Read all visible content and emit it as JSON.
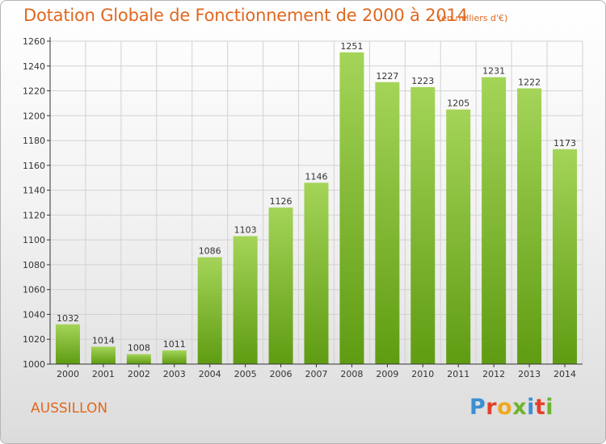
{
  "header": {
    "title": "Dotation Globale de Fonctionnement de 2000 à 2014",
    "subtitle": "(en milliers d'€)"
  },
  "footer": {
    "commune": "AUSSILLON",
    "logo": {
      "letters": [
        "P",
        "r",
        "o",
        "x",
        "i",
        "t",
        "i"
      ],
      "colors": [
        "#3a8fd4",
        "#e2402c",
        "#f0a81e",
        "#6cb52c",
        "#3a8fd4",
        "#e2402c",
        "#6cb52c"
      ]
    }
  },
  "colors": {
    "bar_top": "#a4d458",
    "bar_bottom": "#5f9c12",
    "grid": "#d2d2d2",
    "axis": "#333333",
    "accent": "#e06820"
  },
  "chart_data": {
    "type": "bar",
    "title": "Dotation Globale de Fonctionnement de 2000 à 2014",
    "subtitle": "(en milliers d'€)",
    "xlabel": "",
    "ylabel": "",
    "categories": [
      "2000",
      "2001",
      "2002",
      "2003",
      "2004",
      "2005",
      "2006",
      "2007",
      "2008",
      "2009",
      "2010",
      "2011",
      "2012",
      "2013",
      "2014"
    ],
    "values": [
      1032,
      1014,
      1008,
      1011,
      1086,
      1103,
      1126,
      1146,
      1251,
      1227,
      1223,
      1205,
      1231,
      1222,
      1173
    ],
    "data_labels": [
      "1032",
      "1014",
      "1008",
      "1011",
      "1086",
      "1103",
      "1126",
      "1146",
      "1251",
      "1227",
      "1223",
      "1205",
      "1231",
      "1222",
      "1173"
    ],
    "ylim": [
      1000,
      1260
    ],
    "yticks": [
      1000,
      1020,
      1040,
      1060,
      1080,
      1100,
      1120,
      1140,
      1160,
      1180,
      1200,
      1220,
      1240,
      1260
    ],
    "grid": true,
    "legend": "none"
  }
}
